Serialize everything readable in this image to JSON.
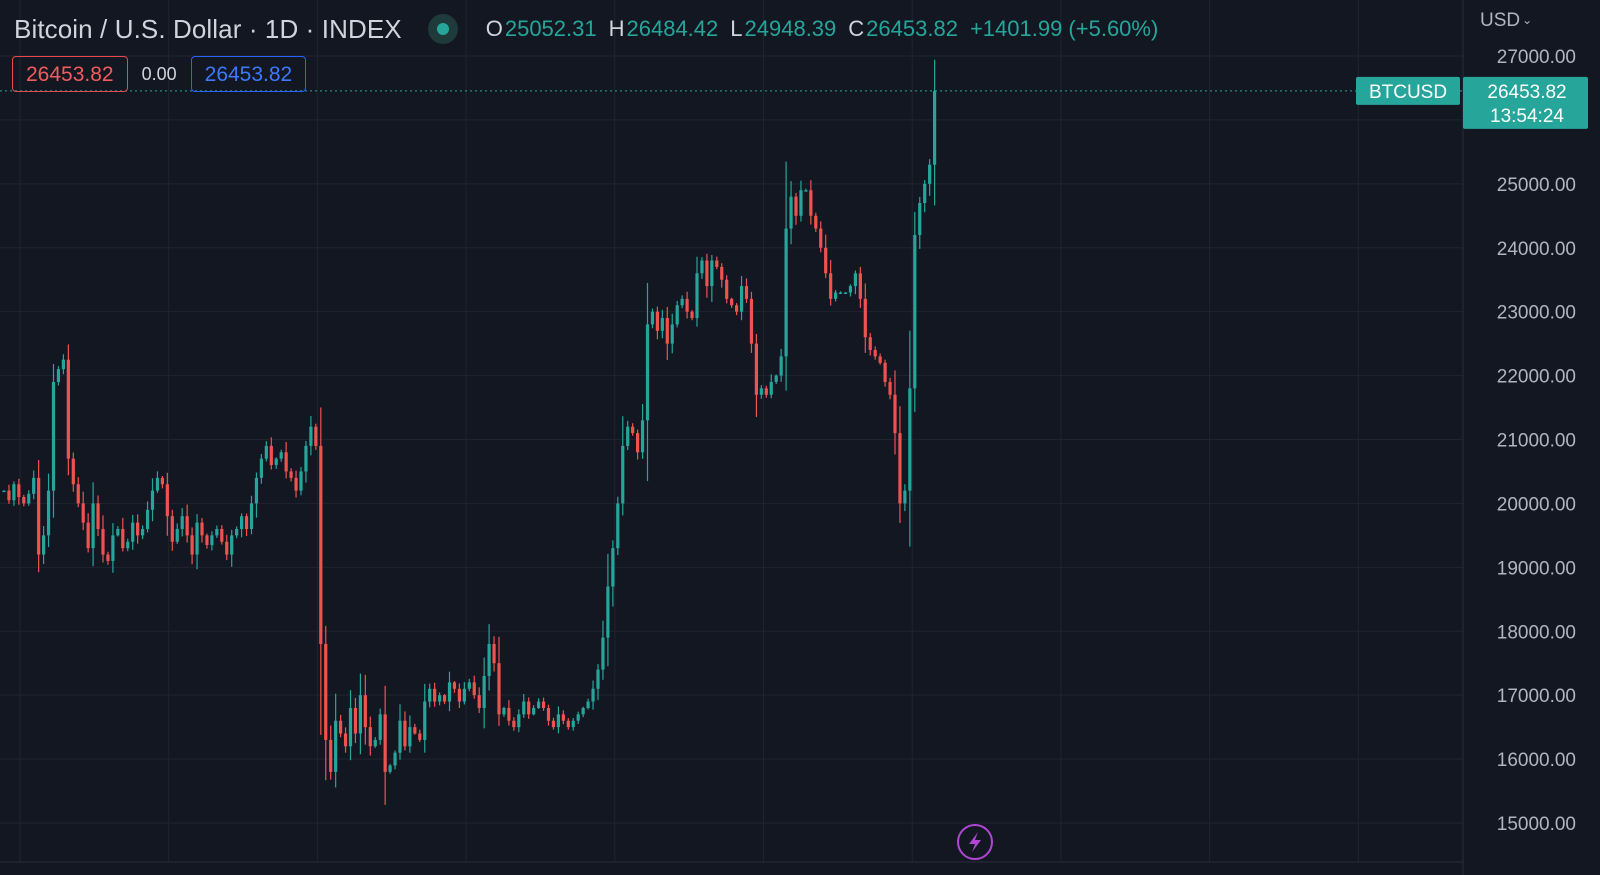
{
  "header": {
    "title": "Bitcoin / U.S. Dollar · 1D · INDEX",
    "open_label": "O",
    "open": "25052.31",
    "high_label": "H",
    "high": "26484.42",
    "low_label": "L",
    "low": "24948.39",
    "close_label": "C",
    "close": "26453.82",
    "change": "+1401.99 (+5.60%)"
  },
  "price_boxes": {
    "sell": "26453.82",
    "spread": "0.00",
    "buy": "26453.82"
  },
  "currency": "USD",
  "last_price": {
    "symbol": "BTCUSD",
    "price": "26453.82",
    "countdown": "13:54:24"
  },
  "colors": {
    "background": "#131722",
    "up": "#26a69a",
    "down": "#ef5350",
    "grid": "#1f2430",
    "text": "#b2b5be",
    "badge": "#26a69a"
  },
  "chart_data": {
    "type": "candlestick",
    "y_ticks": [
      "15000.00",
      "16000.00",
      "17000.00",
      "18000.00",
      "19000.00",
      "20000.00",
      "21000.00",
      "22000.00",
      "23000.00",
      "24000.00",
      "25000.00",
      "26000.00",
      "27000.00"
    ],
    "ylim": [
      14000,
      27800
    ],
    "grid": true,
    "close_path": [
      20200,
      20050,
      20300,
      20100,
      20000,
      20150,
      20400,
      19200,
      19500,
      20200,
      21900,
      22100,
      22250,
      20700,
      20300,
      20000,
      19700,
      19300,
      20000,
      19600,
      19200,
      19100,
      19500,
      19600,
      19300,
      19400,
      19700,
      19500,
      19600,
      19900,
      20200,
      20400,
      20300,
      19800,
      19400,
      19600,
      19800,
      19500,
      19200,
      19700,
      19500,
      19350,
      19500,
      19600,
      19400,
      19200,
      19500,
      19600,
      19800,
      19600,
      20000,
      20400,
      20700,
      20900,
      20600,
      20700,
      20800,
      20500,
      20400,
      20200,
      20500,
      20900,
      21200,
      20900,
      17800,
      16300,
      15800,
      16600,
      16400,
      16200,
      16800,
      16400,
      17000,
      16500,
      16200,
      16300,
      16700,
      15800,
      15900,
      16100,
      16600,
      16200,
      16500,
      16400,
      16300,
      16900,
      17100,
      16900,
      17000,
      16900,
      17200,
      17100,
      16900,
      17100,
      17200,
      17000,
      16800,
      17300,
      17800,
      17500,
      16700,
      16800,
      16600,
      16500,
      16700,
      16900,
      16700,
      16800,
      16900,
      16800,
      16600,
      16500,
      16700,
      16600,
      16500,
      16600,
      16700,
      16800,
      16900,
      17100,
      17400,
      17900,
      18700,
      19300,
      20000,
      20900,
      21200,
      21100,
      20800,
      21300,
      22800,
      23000,
      22700,
      22900,
      22500,
      22800,
      23100,
      23200,
      23000,
      22900,
      23600,
      23800,
      23400,
      23800,
      23700,
      23500,
      23200,
      23100,
      23000,
      23400,
      23200,
      22500,
      21700,
      21800,
      21700,
      21900,
      22000,
      22300,
      24300,
      24800,
      24500,
      24900,
      24900,
      24500,
      24300,
      24000,
      23600,
      23200,
      23300,
      23300,
      23300,
      23400,
      23600,
      23200,
      22600,
      22400,
      22300,
      22200,
      21900,
      21700,
      21100,
      20000,
      20200,
      21800,
      24200,
      24700,
      25000,
      25300,
      26453.82
    ]
  }
}
